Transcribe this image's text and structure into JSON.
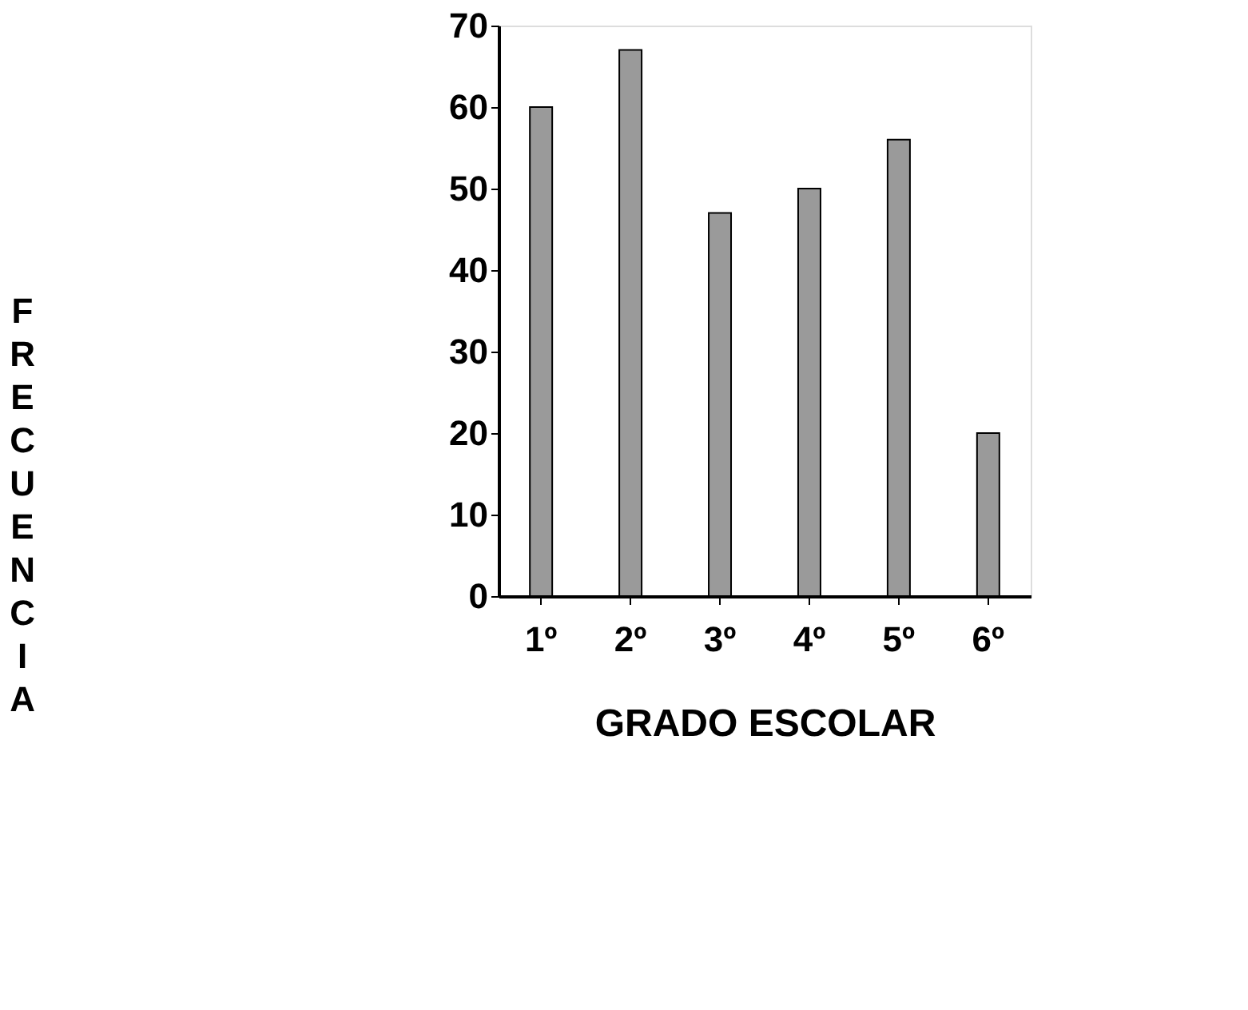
{
  "chart_data": {
    "type": "bar",
    "xlabel": "GRADO ESCOLAR",
    "ylabel": "FRECUENCIA",
    "categories": [
      "1º",
      "2º",
      "3º",
      "4º",
      "5º",
      "6º"
    ],
    "values": [
      60,
      67,
      47,
      50,
      56,
      20
    ],
    "color": "#9a9a9a",
    "ylim": [
      0,
      70
    ],
    "yticks": [
      0,
      10,
      20,
      30,
      40,
      50,
      60,
      70
    ],
    "grid": false
  }
}
